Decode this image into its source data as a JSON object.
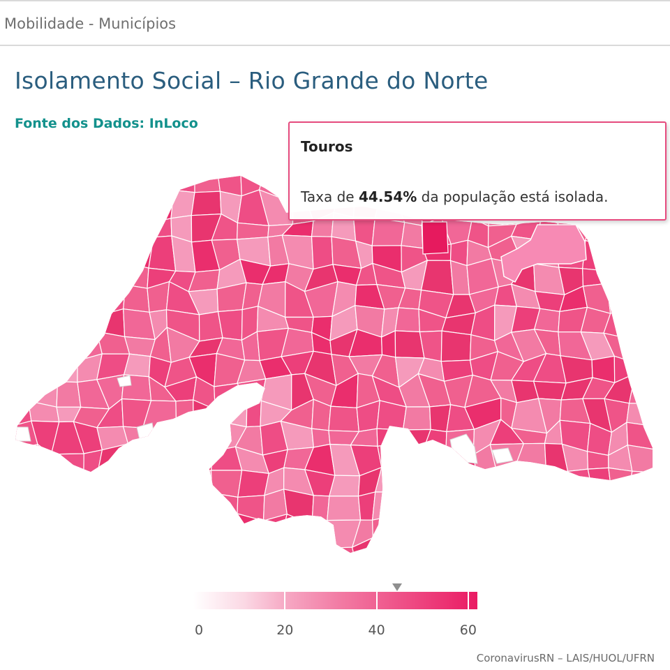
{
  "header": {
    "breadcrumb": "Mobilidade - Municípios"
  },
  "map": {
    "title": "Isolamento Social – Rio Grande do Norte",
    "source": "Fonte dos Dados: InLoco",
    "colors": {
      "low": "#ffffff",
      "mid": "#f27aa3",
      "high": "#ea1b63",
      "no_data": "#ffffff",
      "border": "#ffffff"
    }
  },
  "tooltip": {
    "name": "Touros",
    "prefix": "Taxa de",
    "value": "44.54%",
    "suffix": "da população está isolada."
  },
  "legend": {
    "min": 0,
    "max": 62,
    "marker_value": 44.54,
    "ticks": [
      "0",
      "20",
      "40",
      "60"
    ],
    "tick_values": [
      0,
      20,
      40,
      60
    ]
  },
  "footer": {
    "credits": "CoronavirusRN – LAIS/HUOL/UFRN"
  }
}
